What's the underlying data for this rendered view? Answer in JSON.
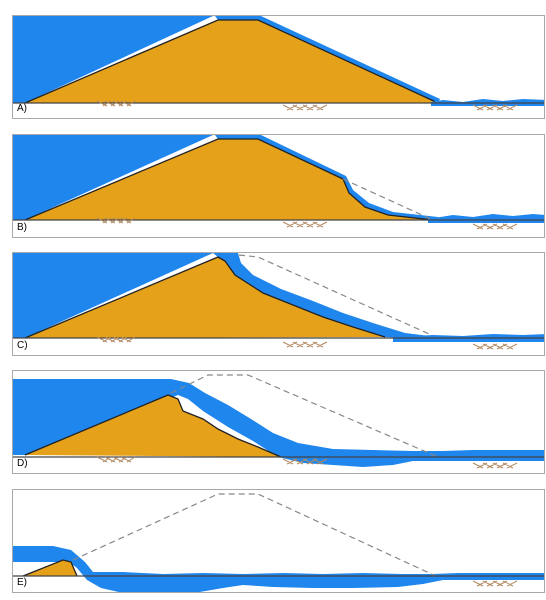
{
  "colors": {
    "water": "#1f86ee",
    "dam": "#e5a11a",
    "outline": "#222222",
    "ground": "#444444",
    "dashed": "#888888",
    "hatch": "#b28a63",
    "frame": "#a9a9a9"
  },
  "panels": [
    {
      "label": "A)"
    },
    {
      "label": "B)"
    },
    {
      "label": "C)"
    },
    {
      "label": "D)"
    },
    {
      "label": "E)"
    }
  ]
}
